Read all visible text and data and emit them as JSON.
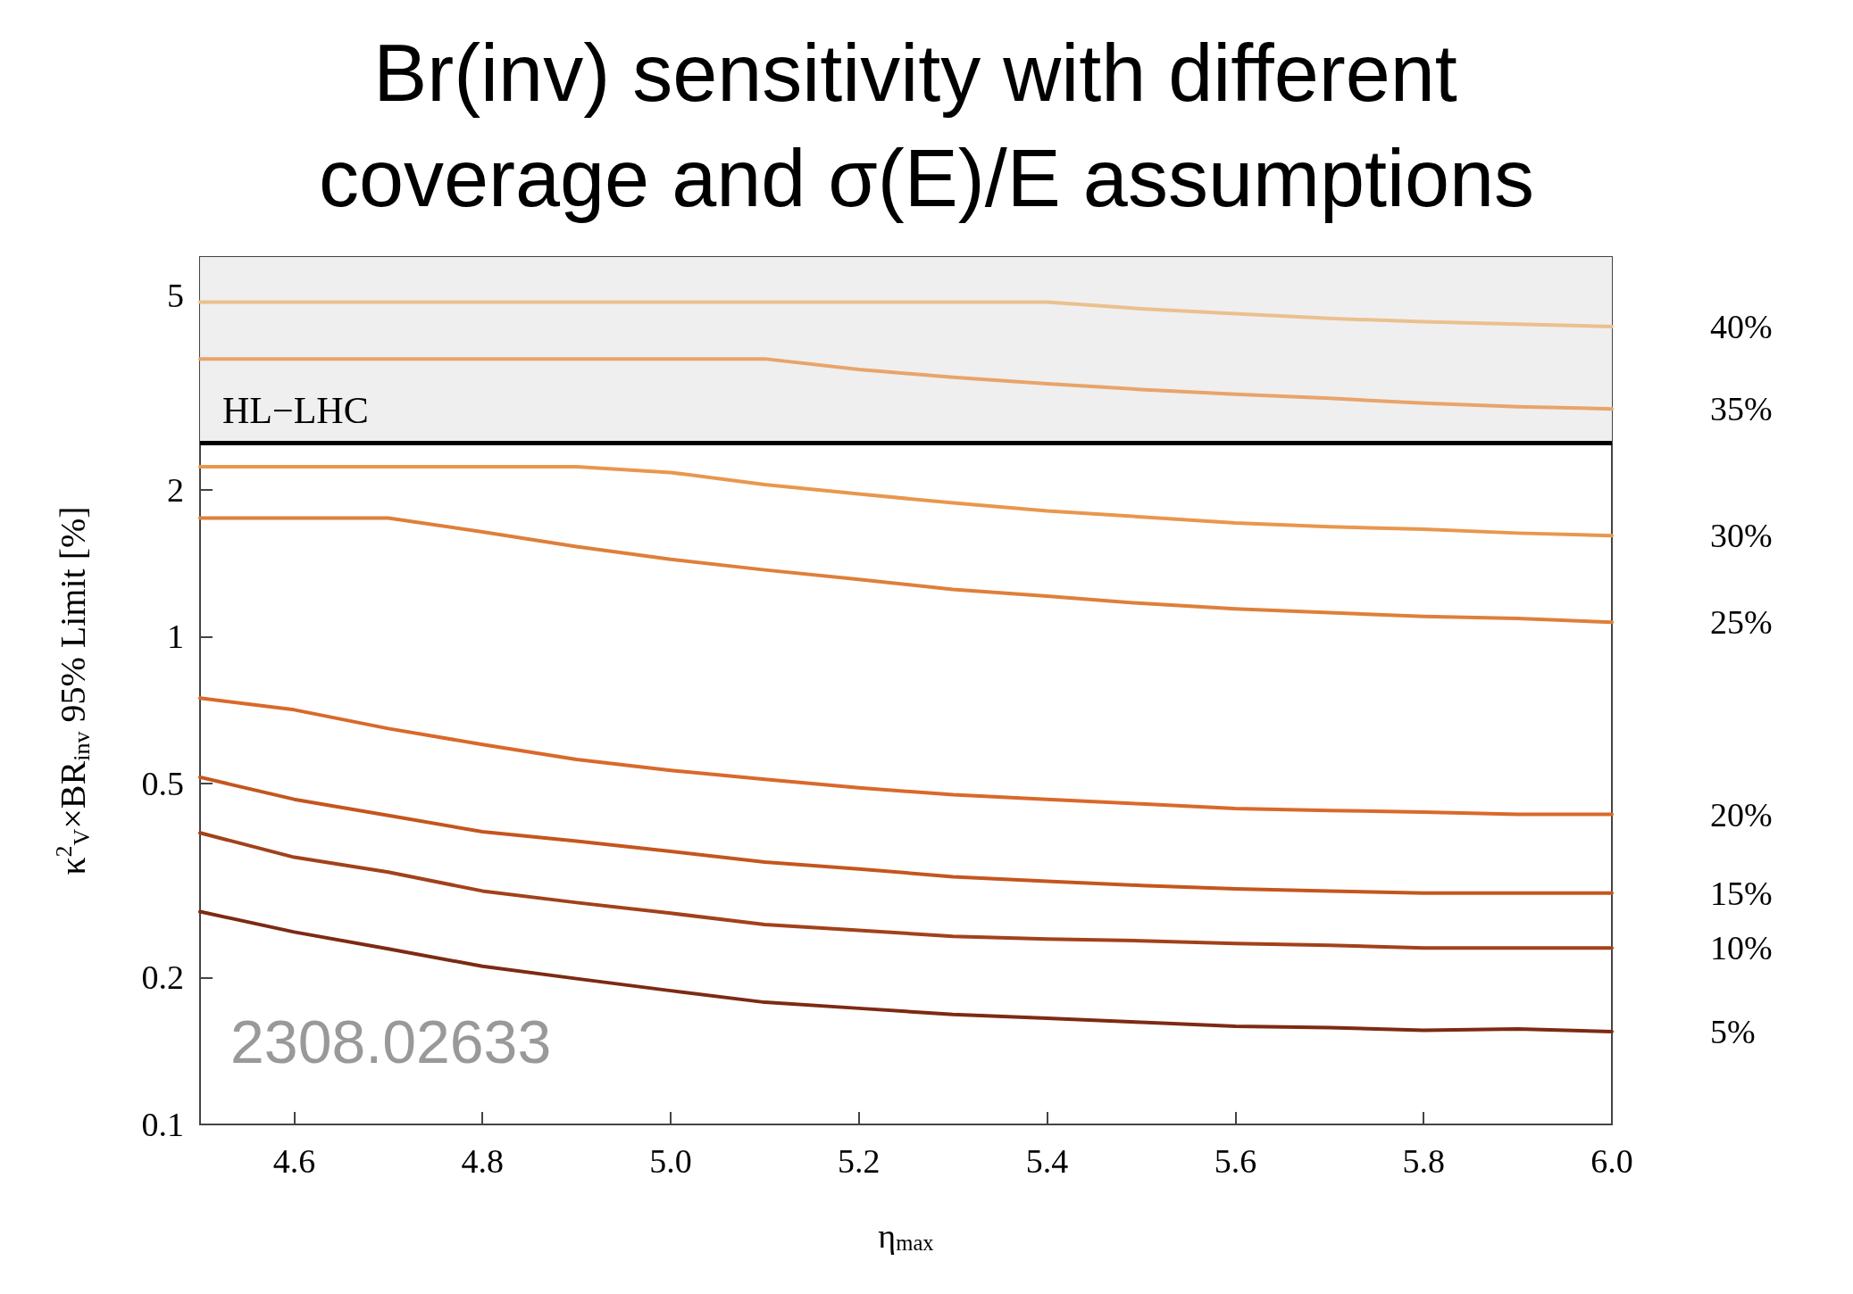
{
  "chart_data": {
    "type": "line",
    "title": "Br(inv) sensitivity with different coverage and σ(E)/E assumptions",
    "xlabel": "η$_{max}$",
    "ylabel": "κ$^{2}$$_{V}$×BR$_{inv}$ 95% Limit [%]",
    "annotations": [
      "2308.02633"
    ],
    "x": [
      4.5,
      4.6,
      4.7,
      4.8,
      4.9,
      5.0,
      5.1,
      5.2,
      5.3,
      5.4,
      5.5,
      5.6,
      5.7,
      5.8,
      5.9,
      6.0
    ],
    "xlim": [
      4.5,
      6.0
    ],
    "xticks": [
      4.6,
      4.8,
      {
        "value": 5,
        "label": "5.0"
      },
      5.2,
      5.4,
      5.6,
      5.8,
      {
        "value": 6,
        "label": "6.0"
      }
    ],
    "ylim": [
      0.1,
      6
    ],
    "yticks": [
      0.1,
      0.2,
      0.5,
      1,
      2,
      5
    ],
    "log": "y",
    "grid": false,
    "legend": false,
    "marker": "none",
    "line_style": "solid",
    "bands": [
      {
        "axis": "y",
        "from": 2.5,
        "to": 6,
        "label": "HL−LHC",
        "color": "#efefef"
      }
    ],
    "ref_lines": [
      {
        "axis": "y",
        "value": 2.5,
        "color": "#000000"
      }
    ],
    "series": [
      {
        "name": "40%",
        "color": "#ebc08e",
        "values": [
          4.85,
          4.85,
          4.85,
          4.85,
          4.85,
          4.85,
          4.85,
          4.85,
          4.85,
          4.85,
          4.7,
          4.59,
          4.49,
          4.42,
          4.37,
          4.32
        ]
      },
      {
        "name": "35%",
        "color": "#e8a46a",
        "values": [
          3.71,
          3.71,
          3.71,
          3.71,
          3.71,
          3.71,
          3.71,
          3.53,
          3.4,
          3.3,
          3.21,
          3.14,
          3.08,
          3.01,
          2.96,
          2.93
        ]
      },
      {
        "name": "30%",
        "color": "#e8974d",
        "values": [
          2.23,
          2.23,
          2.23,
          2.23,
          2.23,
          2.17,
          2.05,
          1.96,
          1.88,
          1.81,
          1.76,
          1.71,
          1.68,
          1.66,
          1.63,
          1.61
        ]
      },
      {
        "name": "25%",
        "color": "#df7f3a",
        "values": [
          1.75,
          1.75,
          1.75,
          1.64,
          1.53,
          1.44,
          1.37,
          1.31,
          1.25,
          1.21,
          1.17,
          1.14,
          1.12,
          1.1,
          1.09,
          1.07
        ]
      },
      {
        "name": "20%",
        "color": "#d9692a",
        "values": [
          0.748,
          0.708,
          0.648,
          0.601,
          0.56,
          0.532,
          0.51,
          0.49,
          0.474,
          0.464,
          0.454,
          0.444,
          0.44,
          0.437,
          0.432,
          0.432
        ]
      },
      {
        "name": "15%",
        "color": "#c4561e",
        "values": [
          0.515,
          0.464,
          0.43,
          0.398,
          0.381,
          0.363,
          0.345,
          0.334,
          0.322,
          0.315,
          0.309,
          0.304,
          0.301,
          0.298,
          0.298,
          0.298
        ]
      },
      {
        "name": "10%",
        "color": "#a2411a",
        "values": [
          0.396,
          0.353,
          0.329,
          0.301,
          0.285,
          0.271,
          0.257,
          0.25,
          0.243,
          0.24,
          0.238,
          0.235,
          0.233,
          0.23,
          0.23,
          0.23
        ]
      },
      {
        "name": "5%",
        "color": "#7d2a14",
        "values": [
          0.273,
          0.248,
          0.229,
          0.211,
          0.199,
          0.188,
          0.178,
          0.173,
          0.168,
          0.165,
          0.162,
          0.159,
          0.158,
          0.156,
          0.157,
          0.155
        ]
      }
    ]
  }
}
